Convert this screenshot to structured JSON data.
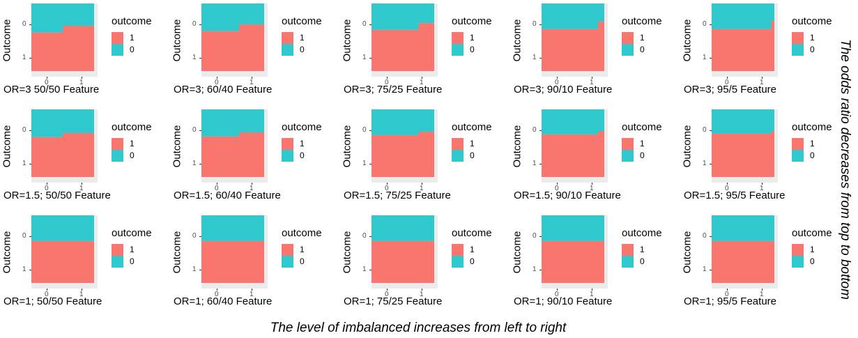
{
  "chart_data": {
    "type": "spine",
    "colors": {
      "outcome_1": "#f8766d",
      "outcome_0": "#2fc8cc",
      "panel_bg": "#ebebeb"
    },
    "y_axis_label": "Outcome",
    "y_ticks": [
      "0",
      "1"
    ],
    "x_ticks": [
      "0",
      "1"
    ],
    "legend": {
      "title": "outcome",
      "entries": [
        {
          "label": "1",
          "color": "#f8766d"
        },
        {
          "label": "0",
          "color": "#2fc8cc"
        }
      ]
    },
    "panels": [
      {
        "title": "OR=3 50/50 Feature",
        "x_split": 0.5,
        "p1": [
          0.57,
          0.67
        ]
      },
      {
        "title": "OR=3; 60/40 Feature",
        "x_split": 0.6,
        "p1": [
          0.59,
          0.69
        ]
      },
      {
        "title": "OR=3; 75/25 Feature",
        "x_split": 0.75,
        "p1": [
          0.61,
          0.71
        ]
      },
      {
        "title": "OR=3; 90/10 Feature",
        "x_split": 0.9,
        "p1": [
          0.62,
          0.73
        ]
      },
      {
        "title": "OR=3; 95/5 Feature",
        "x_split": 0.95,
        "p1": [
          0.62,
          0.74
        ]
      },
      {
        "title": "OR=1.5; 50/50 Feature",
        "x_split": 0.5,
        "p1": [
          0.59,
          0.65
        ]
      },
      {
        "title": "OR=1.5; 60/40 Feature",
        "x_split": 0.6,
        "p1": [
          0.6,
          0.66
        ]
      },
      {
        "title": "OR=1.5; 75/25 Feature",
        "x_split": 0.75,
        "p1": [
          0.62,
          0.67
        ]
      },
      {
        "title": "OR=1.5; 90/10 Feature",
        "x_split": 0.9,
        "p1": [
          0.63,
          0.68
        ]
      },
      {
        "title": "OR=1.5; 95/5 Feature",
        "x_split": 0.95,
        "p1": [
          0.64,
          0.68
        ]
      },
      {
        "title": "OR=1; 50/50 Feature",
        "x_split": 0.5,
        "p1": [
          0.62,
          0.62
        ]
      },
      {
        "title": "OR=1; 60/40 Feature",
        "x_split": 0.6,
        "p1": [
          0.62,
          0.62
        ]
      },
      {
        "title": "OR=1; 75/25 Feature",
        "x_split": 0.75,
        "p1": [
          0.62,
          0.62
        ]
      },
      {
        "title": "OR=1; 90/10 Feature",
        "x_split": 0.9,
        "p1": [
          0.62,
          0.62
        ]
      },
      {
        "title": "OR=1; 95/5 Feature",
        "x_split": 0.95,
        "p1": [
          0.62,
          0.62
        ]
      }
    ],
    "caption_bottom": "The level of imbalanced increases from left to right",
    "caption_right": "The odds ratio decreases from top to bottom"
  }
}
